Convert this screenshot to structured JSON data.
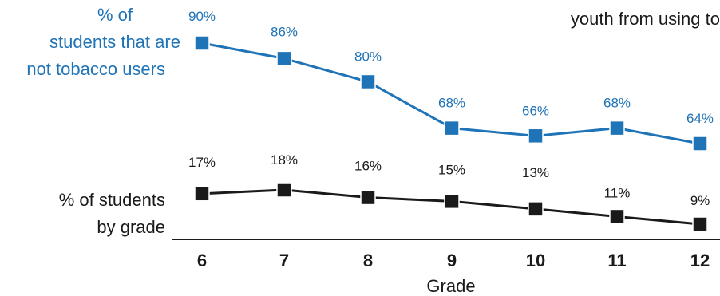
{
  "chart_data": {
    "type": "line",
    "title_fragment": "youth from using to",
    "categories": [
      "6",
      "7",
      "8",
      "9",
      "10",
      "11",
      "12"
    ],
    "xlabel": "Grade",
    "series": [
      {
        "name": "% of students that are not tobacco users",
        "name_lines": [
          "% of",
          "students that are",
          "not tobacco users"
        ],
        "color": "#1f73b7",
        "values": [
          90,
          86,
          80,
          68,
          66,
          68,
          64
        ],
        "labels": [
          "90%",
          "86%",
          "80%",
          "68%",
          "66%",
          "68%",
          "64%"
        ]
      },
      {
        "name": "% of students by grade",
        "name_lines": [
          "% of students",
          "by grade"
        ],
        "color": "#1a1a1a",
        "values": [
          17,
          18,
          16,
          15,
          13,
          11,
          9
        ],
        "labels": [
          "17%",
          "18%",
          "16%",
          "15%",
          "13%",
          "11%",
          "9%"
        ]
      }
    ],
    "grid": false,
    "legend": "left"
  }
}
